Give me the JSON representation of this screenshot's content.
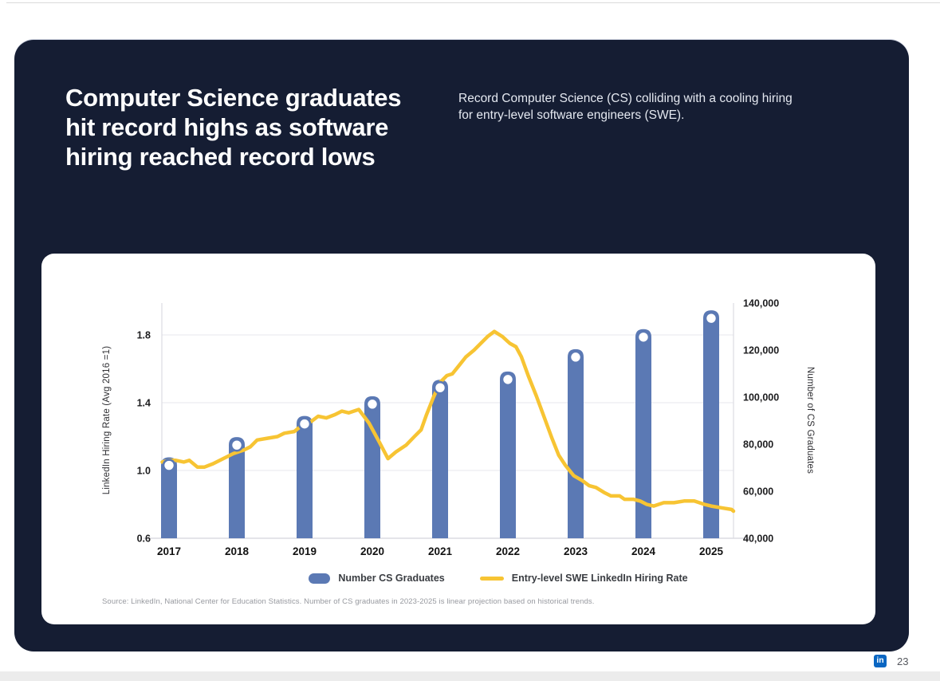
{
  "slide": {
    "title_lines": [
      "Computer Science graduates",
      "hit record highs as software",
      "hiring reached record lows"
    ],
    "subtitle": "Record Computer Science (CS) colliding with a cooling hiring for entry-level software engineers (SWE).",
    "source": "Source: LinkedIn, National Center for Education Statistics. Number of CS graduates in 2023-2025 is linear projection based on historical trends."
  },
  "footer": {
    "logo_text": "in",
    "page_number": "23"
  },
  "colors": {
    "slide_background": "#151d33",
    "card_background": "#ffffff",
    "bar_blue": "#5b79b4",
    "line_yellow": "#f7c433",
    "linkedin_blue": "#0a66c2",
    "gridline": "#ececf0",
    "axis_line": "#dcdce2"
  },
  "chart_data": {
    "type": "combo-bar-line",
    "title": "",
    "categories": [
      "2017",
      "2018",
      "2019",
      "2020",
      "2021",
      "2022",
      "2023",
      "2024",
      "2025"
    ],
    "series": [
      {
        "name": "Number CS Graduates",
        "type": "bar",
        "axis": "right",
        "color": "#5b79b4",
        "values": [
          71000,
          79600,
          88600,
          97000,
          104000,
          107500,
          117000,
          125500,
          133500
        ]
      },
      {
        "name": "Entry-level SWE LinkedIn Hiring Rate",
        "type": "line",
        "axis": "left",
        "color": "#f7c433",
        "points": [
          [
            2016.9,
            1.05
          ],
          [
            2017.0,
            1.06
          ],
          [
            2017.1,
            1.06
          ],
          [
            2017.22,
            1.05
          ],
          [
            2017.3,
            1.06
          ],
          [
            2017.42,
            1.02
          ],
          [
            2017.52,
            1.02
          ],
          [
            2017.65,
            1.04
          ],
          [
            2017.8,
            1.07
          ],
          [
            2017.95,
            1.1
          ],
          [
            2018.1,
            1.12
          ],
          [
            2018.2,
            1.14
          ],
          [
            2018.3,
            1.18
          ],
          [
            2018.45,
            1.19
          ],
          [
            2018.6,
            1.2
          ],
          [
            2018.7,
            1.22
          ],
          [
            2018.85,
            1.23
          ],
          [
            2018.97,
            1.27
          ],
          [
            2019.1,
            1.29
          ],
          [
            2019.2,
            1.32
          ],
          [
            2019.32,
            1.31
          ],
          [
            2019.45,
            1.33
          ],
          [
            2019.55,
            1.35
          ],
          [
            2019.65,
            1.34
          ],
          [
            2019.8,
            1.36
          ],
          [
            2019.95,
            1.28
          ],
          [
            2020.1,
            1.17
          ],
          [
            2020.23,
            1.07
          ],
          [
            2020.35,
            1.11
          ],
          [
            2020.5,
            1.15
          ],
          [
            2020.62,
            1.2
          ],
          [
            2020.72,
            1.24
          ],
          [
            2020.8,
            1.33
          ],
          [
            2020.9,
            1.43
          ],
          [
            2021.0,
            1.52
          ],
          [
            2021.1,
            1.56
          ],
          [
            2021.18,
            1.57
          ],
          [
            2021.28,
            1.62
          ],
          [
            2021.38,
            1.67
          ],
          [
            2021.5,
            1.71
          ],
          [
            2021.6,
            1.75
          ],
          [
            2021.7,
            1.79
          ],
          [
            2021.8,
            1.82
          ],
          [
            2021.92,
            1.79
          ],
          [
            2022.03,
            1.75
          ],
          [
            2022.12,
            1.73
          ],
          [
            2022.2,
            1.67
          ],
          [
            2022.3,
            1.56
          ],
          [
            2022.42,
            1.44
          ],
          [
            2022.54,
            1.31
          ],
          [
            2022.65,
            1.19
          ],
          [
            2022.75,
            1.09
          ],
          [
            2022.85,
            1.03
          ],
          [
            2022.97,
            0.97
          ],
          [
            2023.1,
            0.94
          ],
          [
            2023.2,
            0.91
          ],
          [
            2023.3,
            0.9
          ],
          [
            2023.42,
            0.87
          ],
          [
            2023.52,
            0.85
          ],
          [
            2023.65,
            0.85
          ],
          [
            2023.72,
            0.83
          ],
          [
            2023.85,
            0.83
          ],
          [
            2023.95,
            0.82
          ],
          [
            2024.05,
            0.8
          ],
          [
            2024.15,
            0.79
          ],
          [
            2024.3,
            0.81
          ],
          [
            2024.45,
            0.81
          ],
          [
            2024.6,
            0.82
          ],
          [
            2024.75,
            0.82
          ],
          [
            2024.9,
            0.8
          ],
          [
            2025.0,
            0.79
          ],
          [
            2025.15,
            0.78
          ],
          [
            2025.3,
            0.77
          ],
          [
            2025.4,
            0.76
          ]
        ]
      }
    ],
    "left_axis": {
      "label": "LinkedIn Hiring Rate (Avg 2016 =1)",
      "tick_labels": [
        "0.6",
        "1.0",
        "1.4",
        "1.8"
      ],
      "tick_values": [
        0.6,
        1.0,
        1.4,
        1.8
      ],
      "range": [
        0.6,
        1.99
      ]
    },
    "right_axis": {
      "label": "Number of CS Graduates",
      "tick_labels": [
        "40,000",
        "60,000",
        "80,000",
        "100,000",
        "120,000",
        "140,000"
      ],
      "tick_values": [
        40000,
        60000,
        80000,
        100000,
        120000,
        140000
      ],
      "range": [
        40000,
        140000
      ]
    },
    "grid": "horizontal",
    "legend_position": "bottom"
  }
}
